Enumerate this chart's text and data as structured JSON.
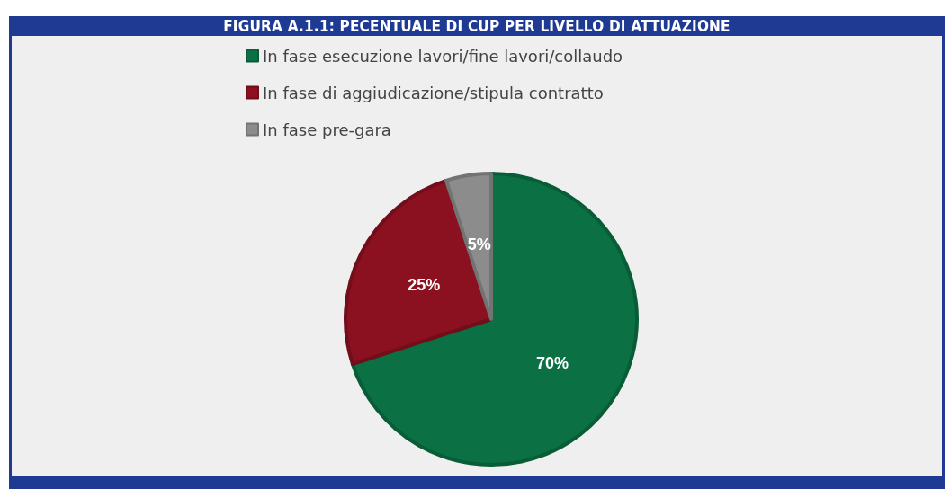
{
  "chart_data": {
    "type": "pie",
    "title": "FIGURA A.1.1: PECENTUALE DI CUP PER LIVELLO DI ATTUAZIONE",
    "categories": [
      "In fase esecuzione lavori/fine lavori/collaudo",
      "In fase di aggiudicazione/stipula contratto",
      "In fase pre-gara"
    ],
    "values": [
      70,
      25,
      5
    ],
    "colors": [
      "#0b7044",
      "#8b1020",
      "#8c8c8c"
    ],
    "value_labels": [
      "70%",
      "25%",
      "5%"
    ],
    "legend": "top left"
  }
}
